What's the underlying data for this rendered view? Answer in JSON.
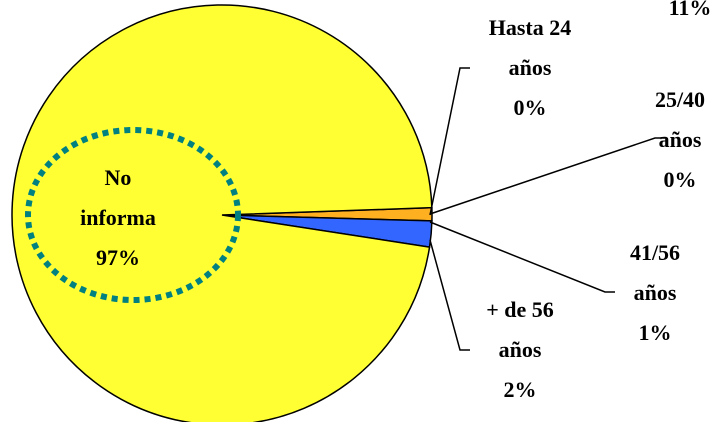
{
  "chart_data": {
    "type": "pie",
    "categories": [
      "Hasta 24 años",
      "25/40 años",
      "41/56 años",
      "+ de 56 años",
      "No informa"
    ],
    "values": [
      0,
      0,
      1,
      2,
      97
    ],
    "value_labels": [
      "0%",
      "0%",
      "1%",
      "2%",
      "97%"
    ],
    "colors": [
      "#ff0000",
      "#00aa00",
      "#ffb020",
      "#3366ff",
      "#ffff33"
    ],
    "annotations": [
      "11%"
    ]
  }
}
